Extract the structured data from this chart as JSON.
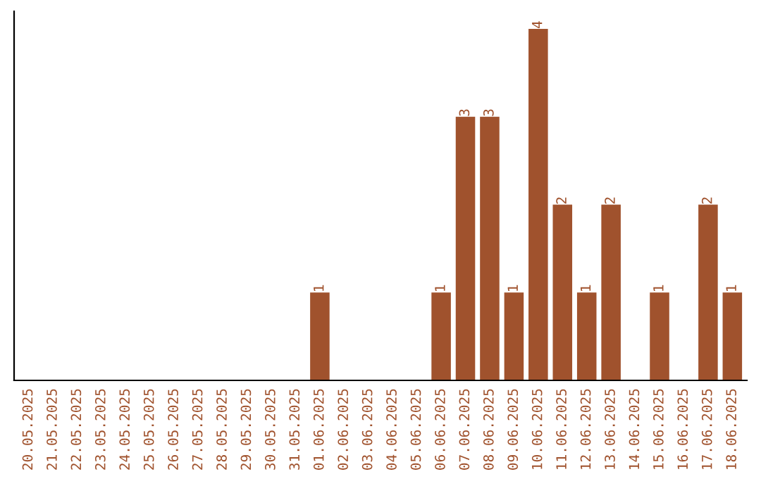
{
  "chart_data": {
    "type": "bar",
    "categories": [
      "20.05.2025",
      "21.05.2025",
      "22.05.2025",
      "23.05.2025",
      "24.05.2025",
      "25.05.2025",
      "26.05.2025",
      "27.05.2025",
      "28.05.2025",
      "29.05.2025",
      "30.05.2025",
      "31.05.2025",
      "01.06.2025",
      "02.06.2025",
      "03.06.2025",
      "04.06.2025",
      "05.06.2025",
      "06.06.2025",
      "07.06.2025",
      "08.06.2025",
      "09.06.2025",
      "10.06.2025",
      "11.06.2025",
      "12.06.2025",
      "13.06.2025",
      "14.06.2025",
      "15.06.2025",
      "16.06.2025",
      "17.06.2025",
      "18.06.2025"
    ],
    "values": [
      null,
      null,
      null,
      null,
      null,
      null,
      null,
      null,
      null,
      null,
      null,
      null,
      1,
      null,
      null,
      null,
      null,
      1,
      3,
      3,
      1,
      4,
      2,
      1,
      2,
      null,
      1,
      null,
      2,
      1
    ],
    "value_labels": [
      null,
      null,
      null,
      null,
      null,
      null,
      null,
      null,
      null,
      null,
      null,
      null,
      "1",
      null,
      null,
      null,
      null,
      "1",
      "3",
      "3",
      "1",
      "4",
      "2",
      "1",
      "2",
      null,
      "1",
      null,
      "2",
      "1"
    ],
    "color": "#a0522d",
    "tick_labels": "x",
    "grid": false,
    "legend": false
  }
}
